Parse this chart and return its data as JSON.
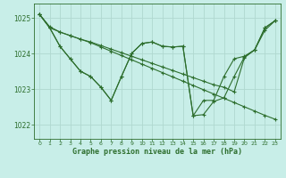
{
  "bg_color": "#c8eee8",
  "grid_color": "#b0d8d0",
  "line_color": "#2d6e2d",
  "xlabel": "Graphe pression niveau de la mer (hPa)",
  "xlim": [
    -0.5,
    23.5
  ],
  "ylim": [
    1021.6,
    1025.4
  ],
  "yticks": [
    1022,
    1023,
    1024,
    1025
  ],
  "xticks": [
    0,
    1,
    2,
    3,
    4,
    5,
    6,
    7,
    8,
    9,
    10,
    11,
    12,
    13,
    14,
    15,
    16,
    17,
    18,
    19,
    20,
    21,
    22,
    23
  ],
  "line1": [
    1025.1,
    1024.75,
    1024.6,
    1024.5,
    1024.4,
    1024.32,
    1024.22,
    1024.12,
    1024.02,
    1023.92,
    1023.82,
    1023.72,
    1023.62,
    1023.52,
    1023.42,
    1023.32,
    1023.22,
    1023.12,
    1023.05,
    1022.92,
    1023.88,
    1024.1,
    1024.65,
    1024.92
  ],
  "line2": [
    1025.1,
    1024.72,
    1024.6,
    1024.5,
    1024.4,
    1024.3,
    1024.18,
    1024.06,
    1023.94,
    1023.82,
    1023.7,
    1023.58,
    1023.46,
    1023.34,
    1023.22,
    1023.1,
    1022.98,
    1022.86,
    1022.74,
    1022.62,
    1022.5,
    1022.38,
    1022.26,
    1022.15
  ],
  "line3": [
    1025.1,
    1024.72,
    1024.2,
    1023.85,
    1023.5,
    1023.35,
    1023.05,
    1022.68,
    1023.35,
    1024.0,
    1024.28,
    1024.32,
    1024.2,
    1024.18,
    1024.2,
    1022.25,
    1022.28,
    1022.65,
    1022.75,
    1023.35,
    1023.9,
    1024.1,
    1024.72,
    1024.92
  ],
  "line4": [
    1025.1,
    1024.72,
    1024.2,
    1023.85,
    1023.5,
    1023.35,
    1023.05,
    1022.68,
    1023.35,
    1024.0,
    1024.28,
    1024.32,
    1024.2,
    1024.18,
    1024.2,
    1022.25,
    1022.68,
    1022.68,
    1023.35,
    1023.85,
    1023.92,
    1024.1,
    1024.72,
    1024.92
  ]
}
